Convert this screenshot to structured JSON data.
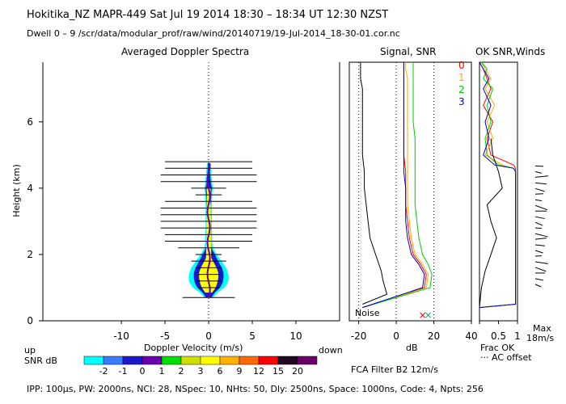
{
  "header": {
    "line1": "Hokitika_NZ   MAPR-449   Sat Jul 19 2014 18:30 – 18:34 UT 12:30 NZST",
    "line2": "Dwell   0  –   9    /scr/data/modular_prof/raw/wind/20140719/19-Jul-2014_18-30-01.cor.nc"
  },
  "footer": {
    "params": "IPP: 100μs,  PW: 2000ns,  NCI:  28,  NSpec: 10, NHts: 50,  Dly: 2500ns,  Space: 1000ns,  Code: 4,  Npts: 256",
    "filter": "FCA Filter B2 12m/s"
  },
  "legend": {
    "up": "up",
    "down": "down",
    "snr_label": "SNR dB",
    "levels": [
      "-2",
      "-1",
      "0",
      "1",
      "2",
      "3",
      "6",
      "9",
      "12",
      "15",
      "20"
    ],
    "colors": [
      "#00ffff",
      "#3a7cff",
      "#1a1acc",
      "#6a00b0",
      "#00e000",
      "#cfe000",
      "#ffff00",
      "#ffb000",
      "#ff6a00",
      "#ff0000",
      "#200a20",
      "#6a006a"
    ]
  },
  "colors": {
    "series0": "#ff0000",
    "series1": "#ffaa00",
    "series2": "#00cc00",
    "series3": "#0000cc"
  },
  "chart_data": [
    {
      "type": "heatmap",
      "title": "Averaged Doppler Spectra",
      "xlabel": "Doppler Velocity (m/s)",
      "ylabel": "Height (km)",
      "xlim": [
        -19,
        15
      ],
      "ylim": [
        0,
        7.8
      ],
      "xticks": [
        "-10",
        "-5",
        "0",
        "5",
        "10"
      ],
      "yticks": [
        "0",
        "2",
        "4",
        "6"
      ],
      "xtick_values": [
        -10,
        -5,
        0,
        5,
        10
      ],
      "ytick_values": [
        0,
        2,
        4,
        6
      ],
      "heights": [
        0.7,
        0.85,
        1.0,
        1.15,
        1.3,
        1.45,
        1.6,
        1.75,
        1.9,
        2.05,
        2.2,
        2.35,
        2.5,
        2.65,
        2.8,
        2.95,
        3.1,
        3.25,
        3.4,
        3.55,
        3.7,
        3.85,
        4.0,
        4.15,
        4.3,
        4.45,
        4.6,
        4.75
      ],
      "cyan_halfwidth": [
        0.5,
        1.0,
        1.8,
        2.2,
        2.3,
        2.2,
        2.0,
        1.6,
        1.2,
        0.8,
        0.5,
        0.4,
        0.4,
        0.4,
        0.35,
        0.35,
        0.35,
        0.35,
        0.35,
        0.35,
        0.4,
        0.4,
        0.5,
        0.4,
        0.35,
        0.3,
        0.25,
        0.2
      ],
      "blue_halfwidth": [
        0.3,
        0.7,
        1.3,
        1.6,
        1.7,
        1.7,
        1.5,
        1.2,
        0.9,
        0.6,
        0.3,
        0.25,
        0.25,
        0.25,
        0.2,
        0.2,
        0.2,
        0.2,
        0.2,
        0.25,
        0.25,
        0.3,
        0.35,
        0.25,
        0.2,
        0.15,
        0.1,
        0.1
      ],
      "yellow_halfwidth": [
        0.0,
        0.4,
        0.8,
        1.0,
        1.1,
        1.1,
        0.9,
        0.6,
        0.3,
        0.0,
        0.0,
        0.0,
        0.0,
        0.0,
        0.0,
        0.0,
        0.0,
        0.0,
        0.0,
        0.0,
        0.0,
        0.2,
        0.25,
        0.0,
        0.0,
        0.0,
        0.0,
        0.0
      ],
      "bar_heights": [
        0.7,
        1.0,
        1.2,
        1.4,
        1.6,
        1.8,
        2.0,
        2.2,
        2.4,
        2.6,
        2.8,
        3.0,
        3.2,
        3.4,
        3.6,
        3.8,
        4.0,
        4.2,
        4.4,
        4.6,
        4.8
      ],
      "bar_halfwidth": [
        3.0,
        1.2,
        1.4,
        1.3,
        1.5,
        2.0,
        1.5,
        3.5,
        5.0,
        5.0,
        5.5,
        5.5,
        5.5,
        5.5,
        5.0,
        1.5,
        2.0,
        5.5,
        5.5,
        5.0,
        5.0
      ]
    },
    {
      "type": "line",
      "title": "Signal, SNR",
      "xlabel": "dB",
      "xlim": [
        -25,
        40
      ],
      "xticks": [
        "-20",
        "0",
        "20",
        "40"
      ],
      "xtick_values": [
        -20,
        0,
        20,
        40
      ],
      "noise_label": "Noise",
      "series": [
        {
          "name": "noise",
          "x": [
            -18,
            -5,
            -7,
            -8,
            -11,
            -14,
            -15,
            -16,
            -17,
            -17,
            -18,
            -18,
            -18,
            -18,
            -18,
            -19,
            -19,
            -19
          ],
          "y": [
            0.5,
            0.8,
            1.2,
            1.5,
            2.0,
            2.5,
            3.0,
            3.5,
            4.0,
            4.5,
            5.0,
            5.5,
            6.0,
            6.5,
            7.0,
            7.3,
            7.6,
            7.8
          ]
        },
        {
          "name": "0",
          "x": [
            -18,
            15,
            16,
            13,
            9,
            7,
            6,
            5,
            5,
            5,
            4,
            4,
            4,
            4,
            4,
            4,
            4,
            4
          ],
          "y": [
            0.4,
            1.0,
            1.4,
            1.7,
            2.0,
            2.5,
            3.0,
            3.5,
            4.0,
            4.5,
            5.0,
            5.5,
            6.0,
            6.5,
            7.0,
            7.3,
            7.6,
            7.8
          ]
        },
        {
          "name": "1",
          "x": [
            -18,
            16,
            17,
            14,
            10,
            8,
            7,
            6,
            6,
            6,
            6,
            6,
            6,
            6,
            6,
            6,
            5,
            5
          ],
          "y": [
            0.4,
            1.0,
            1.4,
            1.7,
            2.0,
            2.5,
            3.0,
            3.5,
            4.0,
            4.5,
            5.0,
            5.5,
            6.0,
            6.5,
            7.0,
            7.3,
            7.6,
            7.8
          ]
        },
        {
          "name": "2",
          "x": [
            -18,
            18,
            19,
            17,
            14,
            12,
            11,
            10,
            10,
            10,
            10,
            10,
            9,
            9,
            9,
            9,
            9,
            9
          ],
          "y": [
            0.4,
            1.0,
            1.4,
            1.7,
            2.0,
            2.5,
            3.0,
            3.5,
            4.0,
            4.5,
            5.0,
            5.5,
            6.0,
            6.5,
            7.0,
            7.3,
            7.6,
            7.8
          ]
        },
        {
          "name": "3",
          "x": [
            -18,
            14,
            15,
            12,
            8,
            6,
            5,
            5,
            5,
            4,
            4,
            4,
            4,
            4,
            4,
            4,
            4,
            4
          ],
          "y": [
            0.4,
            1.0,
            1.4,
            1.7,
            2.0,
            2.5,
            3.0,
            3.5,
            4.0,
            4.5,
            5.0,
            5.5,
            6.0,
            6.5,
            7.0,
            7.3,
            7.6,
            7.8
          ]
        }
      ]
    },
    {
      "type": "line",
      "title": "OK SNR,Winds",
      "legend": [
        "0",
        "1",
        "2",
        "3"
      ],
      "xticks": [
        "0.5",
        "1"
      ],
      "xtick_values": [
        0.5,
        1
      ],
      "xlabel_lines": [
        "Frac OK",
        "··· AC offset"
      ],
      "max_label": "Max",
      "max_value": "18m/s",
      "series": [
        {
          "name": "0",
          "x": [
            0.0,
            0.95,
            0.95,
            0.95,
            0.95,
            0.95,
            0.95,
            0.95,
            0.95,
            0.9,
            0.3,
            0.2,
            0.35,
            0.1,
            0.3,
            0.2,
            0.1,
            0.0
          ],
          "y": [
            0.4,
            0.5,
            1.0,
            2.0,
            3.0,
            4.0,
            4.3,
            4.5,
            4.6,
            4.7,
            5.0,
            5.5,
            6.0,
            6.5,
            7.0,
            7.3,
            7.6,
            7.8
          ]
        },
        {
          "name": "1",
          "x": [
            0.0,
            0.95,
            0.95,
            0.95,
            0.95,
            0.95,
            0.95,
            0.95,
            0.9,
            0.6,
            0.15,
            0.35,
            0.2,
            0.4,
            0.15,
            0.3,
            0.15,
            0.05
          ],
          "y": [
            0.4,
            0.5,
            1.0,
            2.0,
            3.0,
            4.0,
            4.3,
            4.5,
            4.6,
            4.7,
            5.0,
            5.5,
            6.0,
            6.5,
            7.0,
            7.3,
            7.6,
            7.8
          ]
        },
        {
          "name": "2",
          "x": [
            0.0,
            0.95,
            0.95,
            0.95,
            0.95,
            0.95,
            0.95,
            0.95,
            0.9,
            0.5,
            0.2,
            0.15,
            0.3,
            0.2,
            0.35,
            0.1,
            0.2,
            0.05
          ],
          "y": [
            0.4,
            0.5,
            1.0,
            2.0,
            3.0,
            4.0,
            4.3,
            4.5,
            4.6,
            4.7,
            5.0,
            5.5,
            6.0,
            6.5,
            7.0,
            7.3,
            7.6,
            7.8
          ]
        },
        {
          "name": "3",
          "x": [
            0.0,
            0.95,
            0.95,
            0.95,
            0.95,
            0.95,
            0.95,
            0.95,
            0.9,
            0.4,
            0.1,
            0.25,
            0.15,
            0.3,
            0.1,
            0.25,
            0.1,
            0.0
          ],
          "y": [
            0.4,
            0.5,
            1.0,
            2.0,
            3.0,
            4.0,
            4.3,
            4.5,
            4.6,
            4.7,
            5.0,
            5.5,
            6.0,
            6.5,
            7.0,
            7.3,
            7.6,
            7.8
          ]
        },
        {
          "name": "ac",
          "x": [
            0.0,
            0.05,
            0.15,
            0.3,
            0.45,
            0.3,
            0.2,
            0.6,
            0.5,
            0.35,
            0.3
          ],
          "y": [
            0.4,
            1.0,
            1.5,
            2.0,
            2.5,
            3.0,
            3.5,
            4.0,
            4.5,
            5.0,
            5.5
          ]
        }
      ]
    }
  ]
}
